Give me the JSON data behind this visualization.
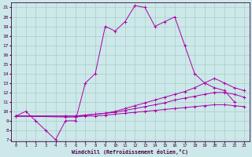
{
  "xlabel": "Windchill (Refroidissement éolien,°C)",
  "bg_color": "#cce8e8",
  "grid_color": "#aacccc",
  "line_color": "#aa00aa",
  "xmin": 0,
  "xmax": 23,
  "ymin": 7,
  "ymax": 21,
  "series1_x": [
    0,
    1,
    2,
    3,
    4,
    5,
    6,
    7,
    8,
    9,
    10,
    11,
    12,
    13,
    14,
    15,
    16,
    17,
    18,
    19,
    20,
    21,
    22
  ],
  "series1_y": [
    9.5,
    10.0,
    9.0,
    8.0,
    7.0,
    9.0,
    9.0,
    13.0,
    14.0,
    19.0,
    18.5,
    19.5,
    21.2,
    21.0,
    19.0,
    19.5,
    20.0,
    17.0,
    14.0,
    13.0,
    12.5,
    12.2,
    11.0
  ],
  "series2_x": [
    0,
    5,
    6,
    7,
    8,
    9,
    10,
    11,
    12,
    13,
    14,
    15,
    16,
    17,
    18,
    19,
    20,
    21,
    22,
    23
  ],
  "series2_y": [
    9.5,
    9.5,
    9.5,
    9.6,
    9.7,
    9.8,
    10.0,
    10.3,
    10.6,
    10.9,
    11.2,
    11.5,
    11.8,
    12.1,
    12.5,
    13.0,
    13.5,
    13.0,
    12.5,
    12.2
  ],
  "series3_x": [
    0,
    5,
    6,
    7,
    8,
    9,
    10,
    11,
    12,
    13,
    14,
    15,
    16,
    17,
    18,
    19,
    20,
    21,
    22,
    23
  ],
  "series3_y": [
    9.5,
    9.5,
    9.5,
    9.6,
    9.7,
    9.8,
    9.9,
    10.1,
    10.3,
    10.5,
    10.7,
    10.9,
    11.2,
    11.4,
    11.6,
    11.8,
    12.0,
    12.0,
    11.8,
    11.5
  ],
  "series4_x": [
    0,
    5,
    6,
    7,
    8,
    9,
    10,
    11,
    12,
    13,
    14,
    15,
    16,
    17,
    18,
    19,
    20,
    21,
    22,
    23
  ],
  "series4_y": [
    9.5,
    9.4,
    9.4,
    9.5,
    9.5,
    9.6,
    9.7,
    9.8,
    9.9,
    10.0,
    10.1,
    10.2,
    10.3,
    10.4,
    10.5,
    10.6,
    10.7,
    10.7,
    10.6,
    10.5
  ],
  "yticks": [
    7,
    8,
    9,
    10,
    11,
    12,
    13,
    14,
    15,
    16,
    17,
    18,
    19,
    20,
    21
  ],
  "xticks": [
    0,
    1,
    2,
    3,
    4,
    5,
    6,
    7,
    8,
    9,
    10,
    11,
    12,
    13,
    14,
    15,
    16,
    17,
    18,
    19,
    20,
    21,
    22,
    23
  ]
}
